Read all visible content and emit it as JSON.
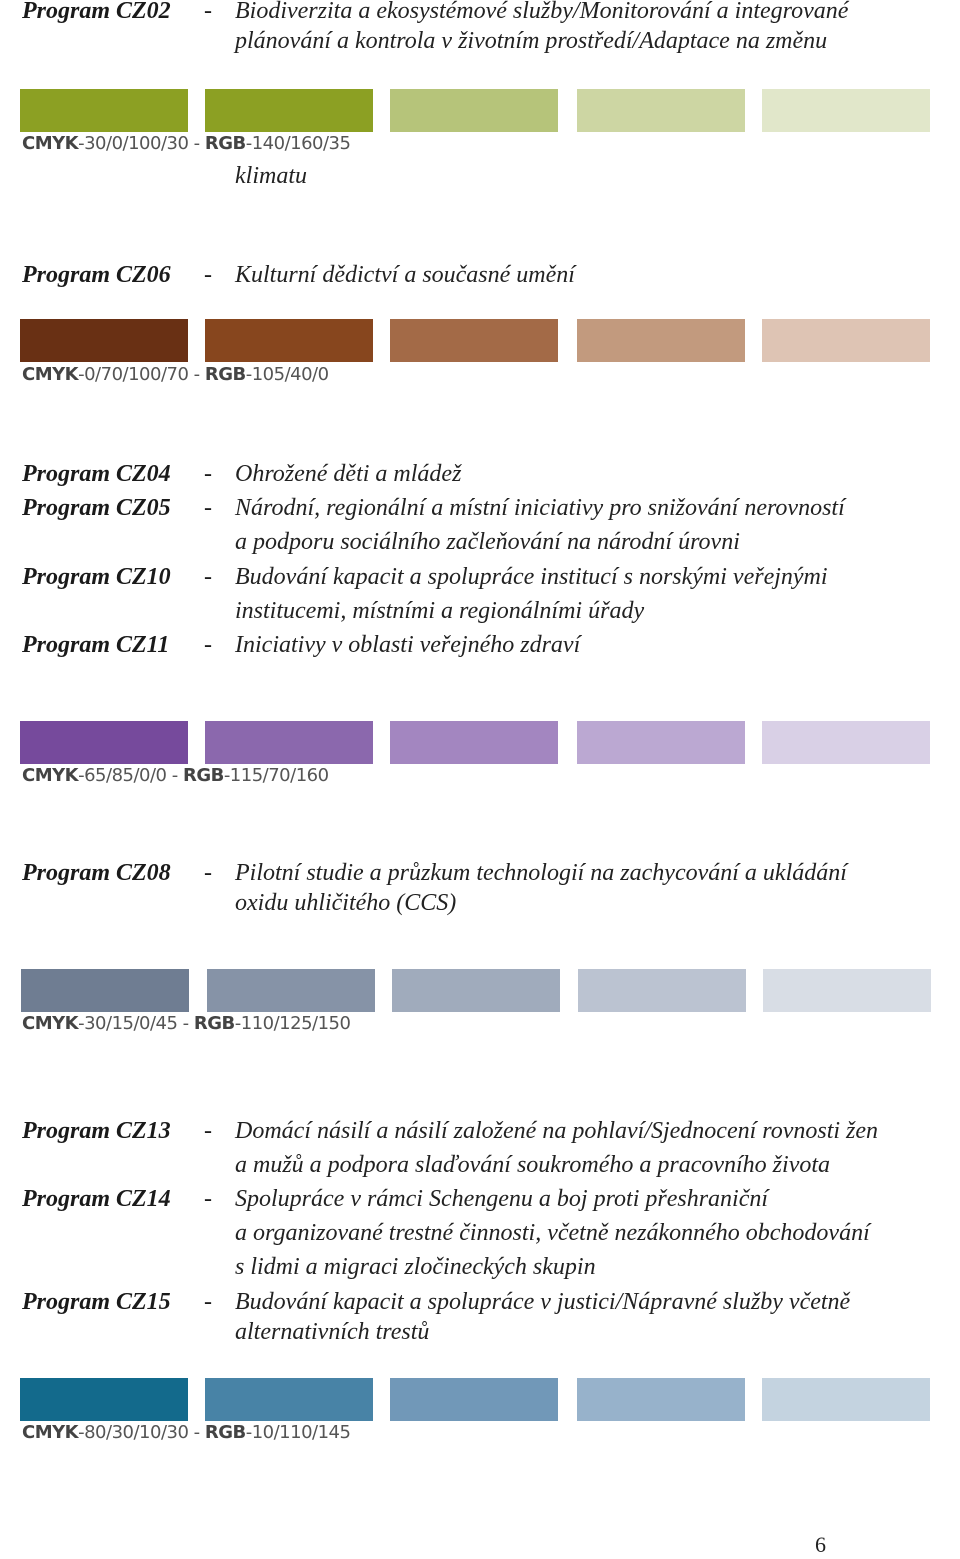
{
  "sections": [
    {
      "programs": [
        {
          "name": "Program CZ02",
          "dash": "-",
          "lines": [
            "Biodiverzita a ekosystémové služby/Monitorování a integrované",
            "plánování a kontrola v životním prostředí/Adaptace na změnu"
          ]
        }
      ],
      "continuation": "klimatu",
      "swatches": [
        "#8ca023",
        "#8ca023",
        "#b6c47a",
        "#cdd6a3",
        "#e1e7ca"
      ],
      "cmyk_label": "CMYK",
      "cmyk_value": "-30/0/100/30 - ",
      "rgb_label": "RGB",
      "rgb_value": "-140/160/35"
    },
    {
      "programs": [
        {
          "name": "Program CZ06",
          "dash": "-",
          "lines": [
            "Kulturní dědictví a současné umění"
          ]
        }
      ],
      "swatches": [
        "#693014",
        "#87461e",
        "#a36a47",
        "#c29a7e",
        "#dec4b4"
      ],
      "cmyk_label": "CMYK",
      "cmyk_value": "-0/70/100/70 - ",
      "rgb_label": "RGB",
      "rgb_value": "-105/40/0"
    },
    {
      "programs": [
        {
          "name": "Program CZ04",
          "dash": "-",
          "lines": [
            "Ohrožené děti a mládež"
          ]
        },
        {
          "name": "Program CZ05",
          "dash": "-",
          "lines": [
            "Národní, regionální a místní iniciativy pro snižování nerovností",
            "a podporu sociálního začleňování na národní úrovni"
          ]
        },
        {
          "name": "Program CZ10",
          "dash": "-",
          "lines": [
            "Budování kapacit a spolupráce institucí s norskými veřejnými",
            "institucemi, místními a regionálními úřady"
          ]
        },
        {
          "name": "Program CZ11",
          "dash": "-",
          "lines": [
            "Iniciativy v oblasti veřejného zdraví"
          ]
        }
      ],
      "swatches": [
        "#764a9c",
        "#8b68ad",
        "#a386c0",
        "#bba8d2",
        "#d9d0e6"
      ],
      "cmyk_label": "CMYK",
      "cmyk_value": "-65/85/0/0 - ",
      "rgb_label": "RGB",
      "rgb_value": "-115/70/160"
    },
    {
      "programs": [
        {
          "name": "Program CZ08",
          "dash": "-",
          "lines": [
            "Pilotní studie a průzkum technologií na zachycování a ukládání",
            "oxidu uhličitého (CCS)"
          ]
        }
      ],
      "swatches": [
        "#6f7d92",
        "#8693a7",
        "#a0abbc",
        "#bbc3d1",
        "#d8dde5"
      ],
      "cmyk_label": "CMYK",
      "cmyk_value": "-30/15/0/45 - ",
      "rgb_label": "RGB",
      "rgb_value": "-110/125/150"
    },
    {
      "programs": [
        {
          "name": "Program CZ13",
          "dash": "-",
          "lines": [
            "Domácí násilí a násilí založené na pohlaví/Sjednocení rovnosti žen",
            "a mužů a podpora slaďování soukromého a pracovního života"
          ]
        },
        {
          "name": "Program CZ14",
          "dash": "-",
          "lines": [
            "Spolupráce v rámci Schengenu a boj proti přeshraniční",
            "a organizované trestné činnosti, včetně nezákonného obchodování",
            "s lidmi a migraci zločineckých skupin"
          ]
        },
        {
          "name": "Program CZ15",
          "dash": "-",
          "lines": [
            "Budování kapacit a spolupráce v justici/Nápravné služby včetně",
            "alternativních trestů"
          ]
        }
      ],
      "swatches": [
        "#136a8c",
        "#4883a6",
        "#7198b8",
        "#97b2cb",
        "#c4d3e0"
      ],
      "cmyk_label": "CMYK",
      "cmyk_value": "-80/30/10/30 - ",
      "rgb_label": "RGB",
      "rgb_value": "-10/110/145"
    }
  ],
  "page_number": "6"
}
